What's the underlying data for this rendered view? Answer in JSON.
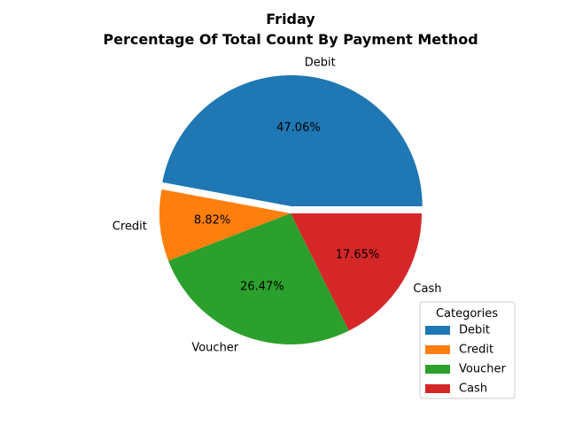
{
  "chart_data": {
    "type": "pie",
    "title": "Friday",
    "subtitle": "Percentage Of Total Count By Payment Method",
    "categories": [
      "Debit",
      "Credit",
      "Voucher",
      "Cash"
    ],
    "values": [
      47.06,
      8.82,
      26.47,
      17.65
    ],
    "value_labels": [
      "47.06%",
      "8.82%",
      "26.47%",
      "17.65%"
    ],
    "colors": [
      "#1f77b4",
      "#ff7f0e",
      "#2ca02c",
      "#d62728"
    ],
    "exploded": [
      "Debit"
    ],
    "start_angle_deg": 0,
    "direction": "counterclockwise",
    "legend": {
      "title": "Categories",
      "entries": [
        "Debit",
        "Credit",
        "Voucher",
        "Cash"
      ],
      "placement": "lower-right"
    }
  }
}
